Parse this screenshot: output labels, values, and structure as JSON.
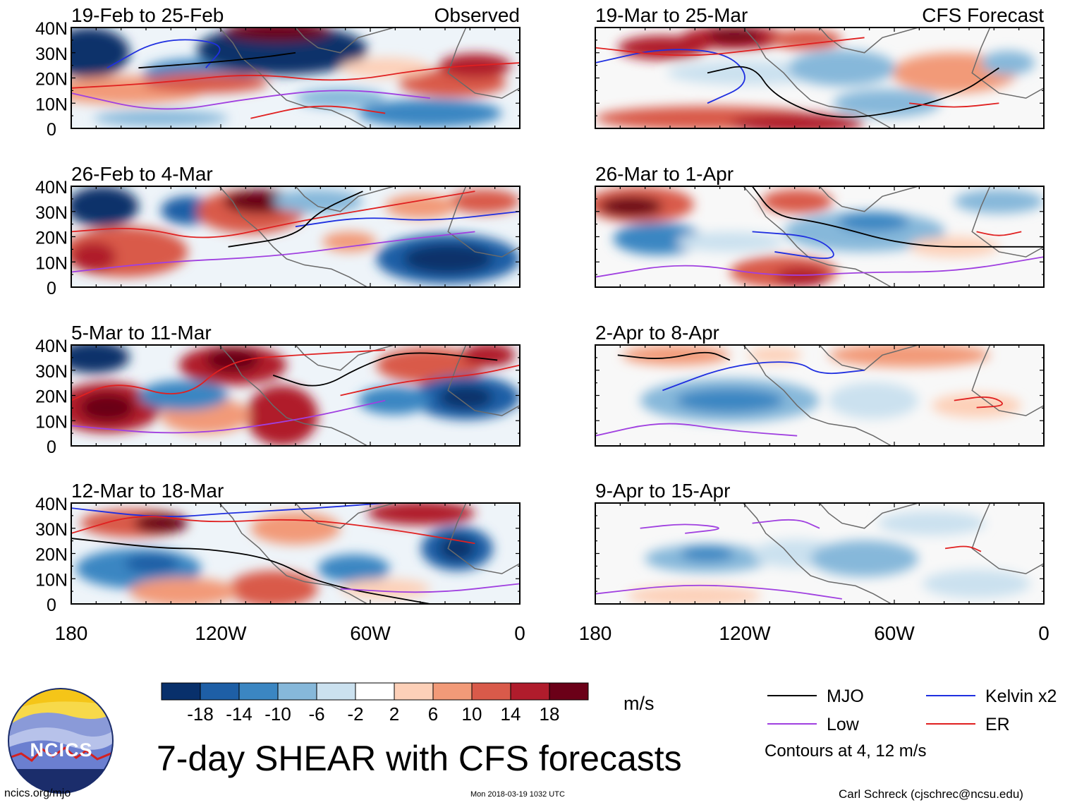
{
  "chart_data": {
    "type": "heatmap",
    "title": "7-day SHEAR with CFS forecasts",
    "units": "m/s",
    "contour_note": "Contours at 4, 12 m/s",
    "lat_tick_labels": [
      "40N",
      "30N",
      "20N",
      "10N",
      "0"
    ],
    "lon_tick_labels": [
      "180",
      "120W",
      "60W",
      "0"
    ],
    "lat_range": [
      0,
      40
    ],
    "lon_range": [
      -180,
      0
    ],
    "columns": [
      {
        "label": "Observed",
        "type": "observed"
      },
      {
        "label": "CFS Forecast",
        "type": "forecast"
      }
    ],
    "panels": [
      {
        "period": "19-Feb to 25-Feb",
        "column": 0,
        "row": 0
      },
      {
        "period": "26-Feb to 4-Mar",
        "column": 0,
        "row": 1
      },
      {
        "period": "5-Mar to 11-Mar",
        "column": 0,
        "row": 2
      },
      {
        "period": "12-Mar to 18-Mar",
        "column": 0,
        "row": 3
      },
      {
        "period": "19-Mar to 25-Mar",
        "column": 1,
        "row": 0
      },
      {
        "period": "26-Mar to 1-Apr",
        "column": 1,
        "row": 1
      },
      {
        "period": "2-Apr to 8-Apr",
        "column": 1,
        "row": 2
      },
      {
        "period": "9-Apr to 15-Apr",
        "column": 1,
        "row": 3
      }
    ],
    "colorbar": {
      "levels": [
        "-18",
        "-14",
        "-10",
        "-6",
        "-2",
        "2",
        "6",
        "10",
        "14",
        "18"
      ],
      "colors": [
        "#08306b",
        "#1e5fa6",
        "#3b86c2",
        "#86b8da",
        "#cbe1ef",
        "#ffffff",
        "#fdd0b8",
        "#f29a78",
        "#d95a4a",
        "#b01c2c",
        "#6b0018"
      ]
    },
    "legend": [
      {
        "label": "MJO",
        "color": "#000000"
      },
      {
        "label": "Kelvin x2",
        "color": "#1f2fe0"
      },
      {
        "label": "Low",
        "color": "#a040e0"
      },
      {
        "label": "ER",
        "color": "#e02020"
      }
    ]
  },
  "logo_text": "NCICS",
  "footer": {
    "website": "ncics.org/mjo",
    "timestamp": "Mon 2018-03-19 1032 UTC",
    "author": "Carl Schreck (cjschrec@ncsu.edu)"
  }
}
